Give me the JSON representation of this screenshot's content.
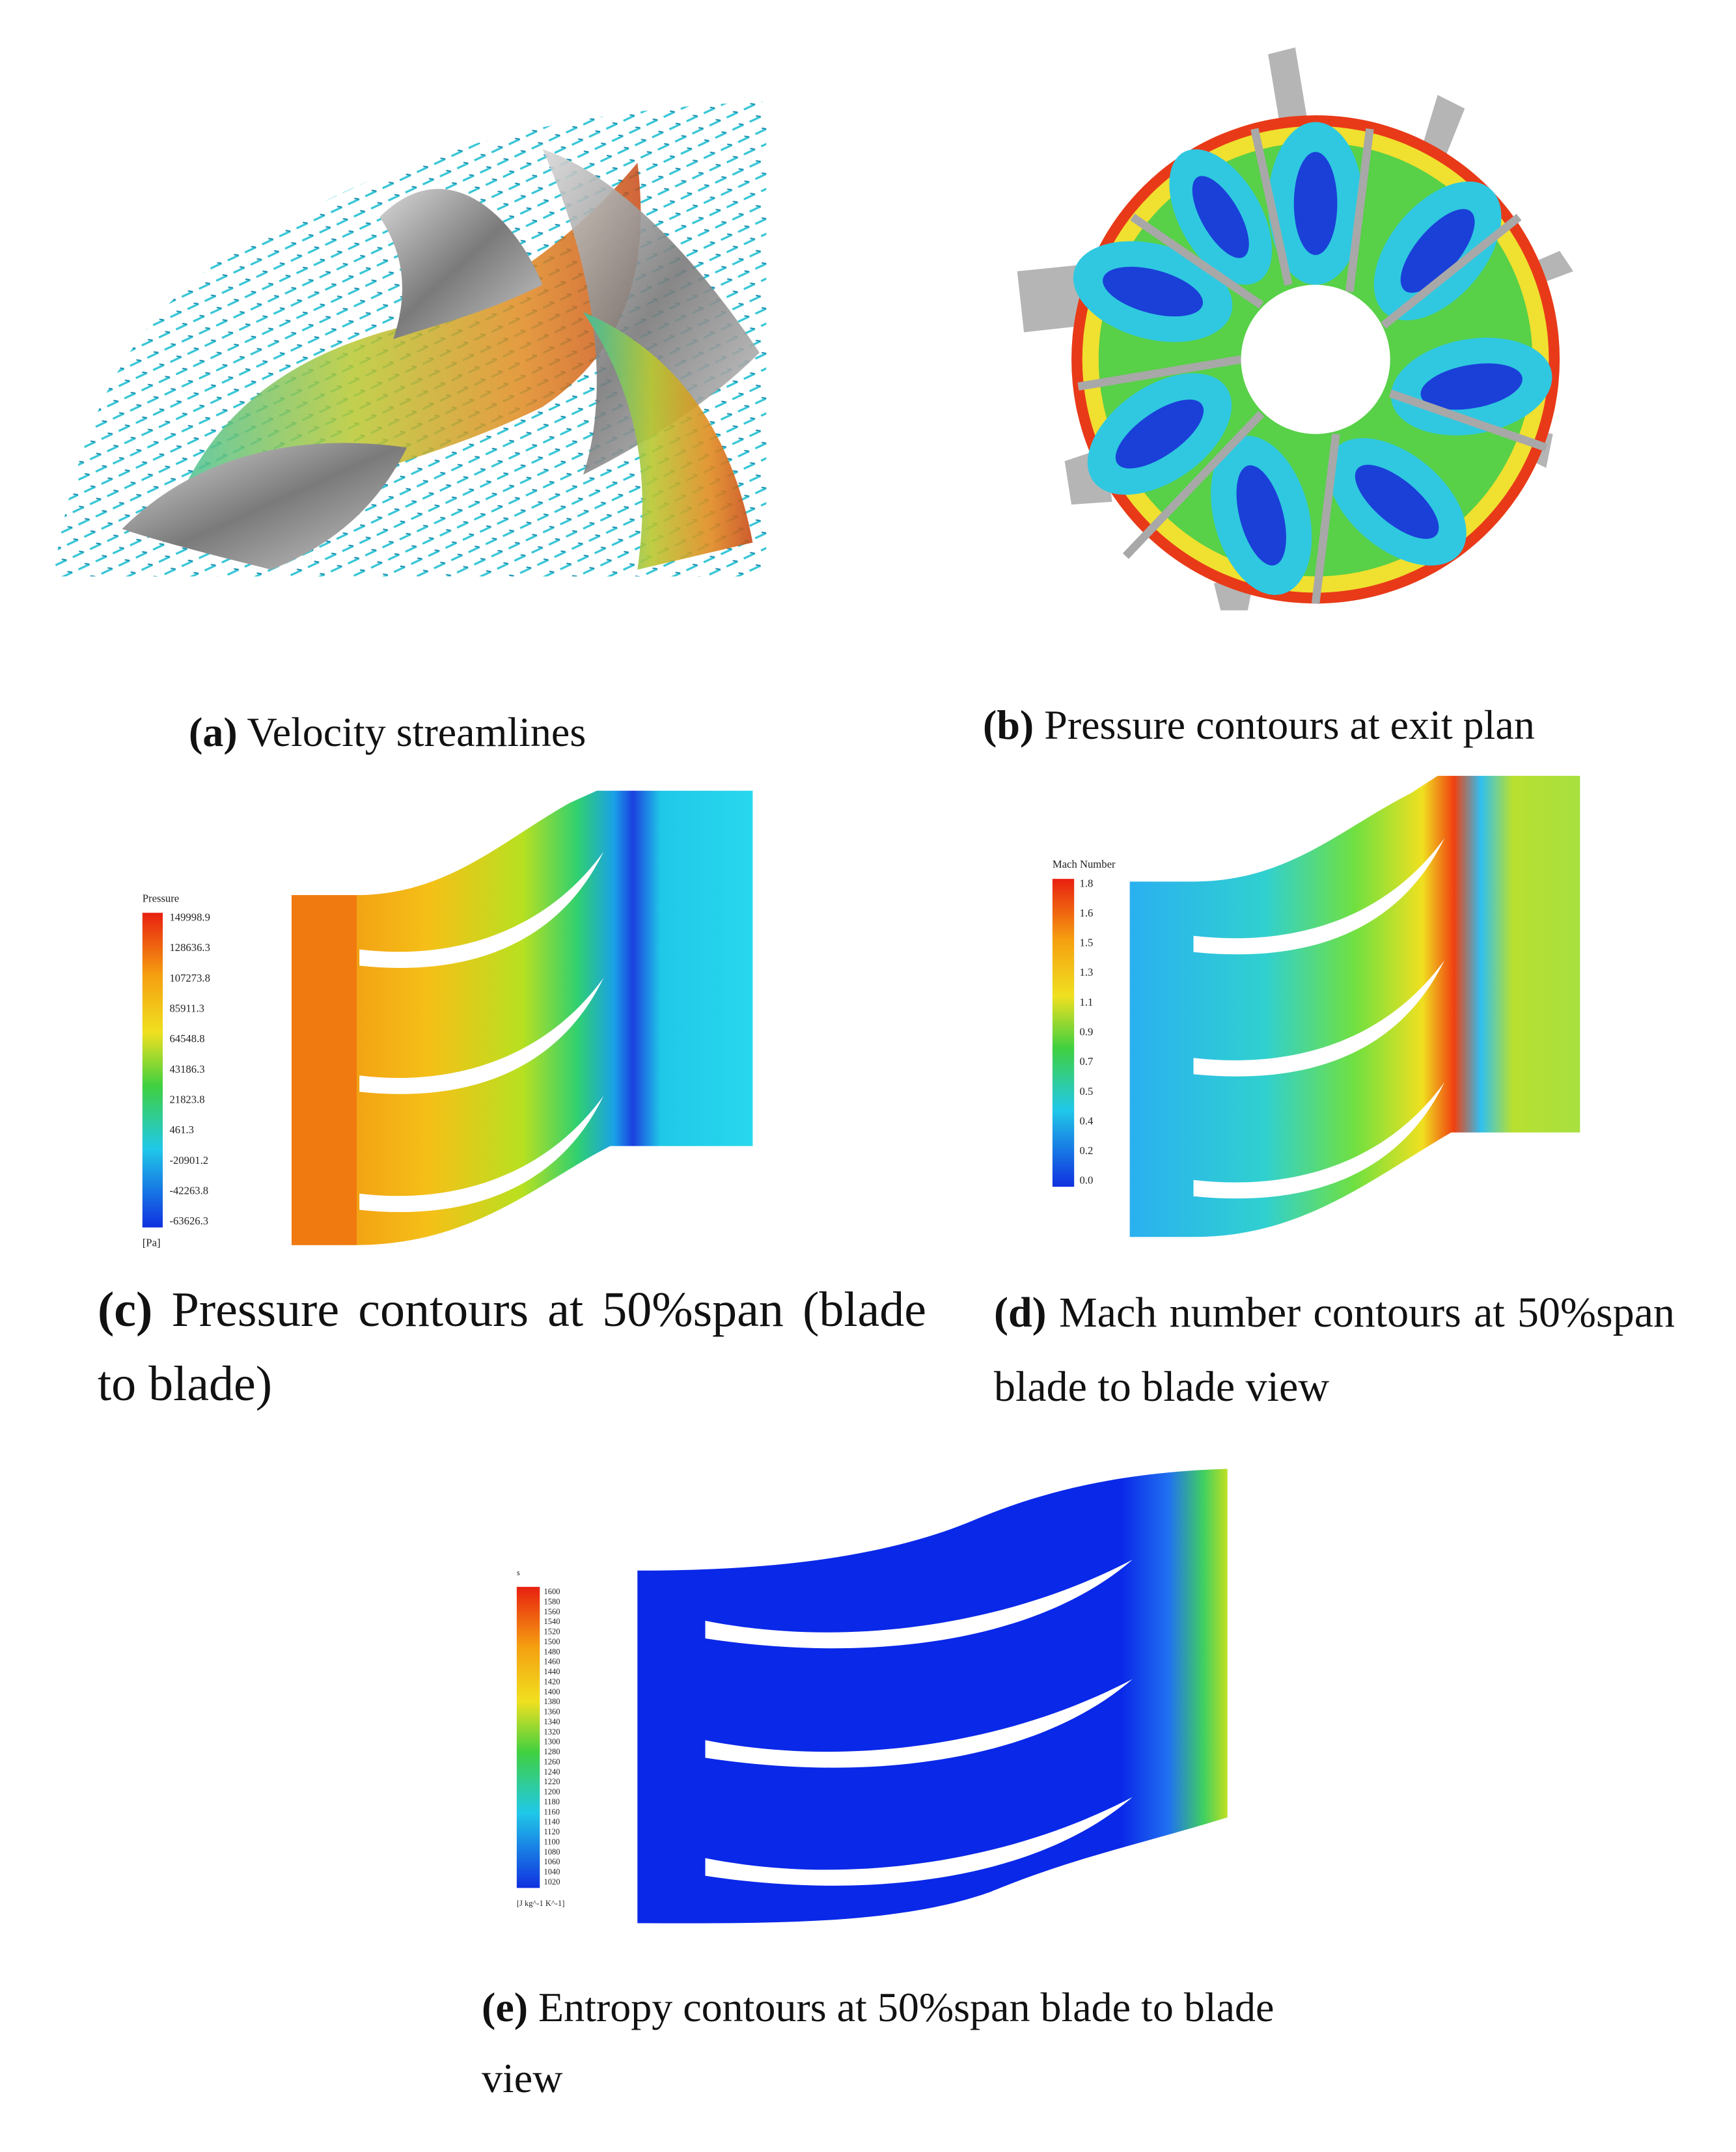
{
  "panels": [
    {
      "label": "(a)",
      "caption": "Velocity streamlines"
    },
    {
      "label": "(b)",
      "caption": "Pressure contours at exit plan"
    },
    {
      "label": "(c)",
      "caption": "Pressure contours at 50%span (blade to blade)",
      "legend": {
        "title": "Pressure",
        "levels": [
          "149998.9",
          "128636.3",
          "107273.8",
          "85911.3",
          "64548.8",
          "43186.3",
          "21823.8",
          "461.3",
          "-20901.2",
          "-42263.8",
          "-63626.3"
        ],
        "unit": "[Pa]"
      }
    },
    {
      "label": "(d)",
      "caption": "Mach number contours at 50%span blade to blade view",
      "legend": {
        "title": "Mach Number",
        "levels": [
          "1.8",
          "1.6",
          "1.5",
          "1.3",
          "1.1",
          "0.9",
          "0.7",
          "0.5",
          "0.4",
          "0.2",
          "0.0"
        ]
      }
    },
    {
      "label": "(e)",
      "caption": "Entropy contours at 50%span blade to blade view",
      "legend": {
        "title": "s",
        "levels": [
          "1600",
          "1580",
          "1560",
          "1540",
          "1520",
          "1500",
          "1480",
          "1460",
          "1440",
          "1420",
          "1400",
          "1380",
          "1360",
          "1340",
          "1320",
          "1300",
          "1280",
          "1260",
          "1240",
          "1220",
          "1200",
          "1180",
          "1160",
          "1140",
          "1120",
          "1100",
          "1080",
          "1060",
          "1040",
          "1020"
        ],
        "unit": "[J kg^-1 K^-1]"
      }
    }
  ]
}
